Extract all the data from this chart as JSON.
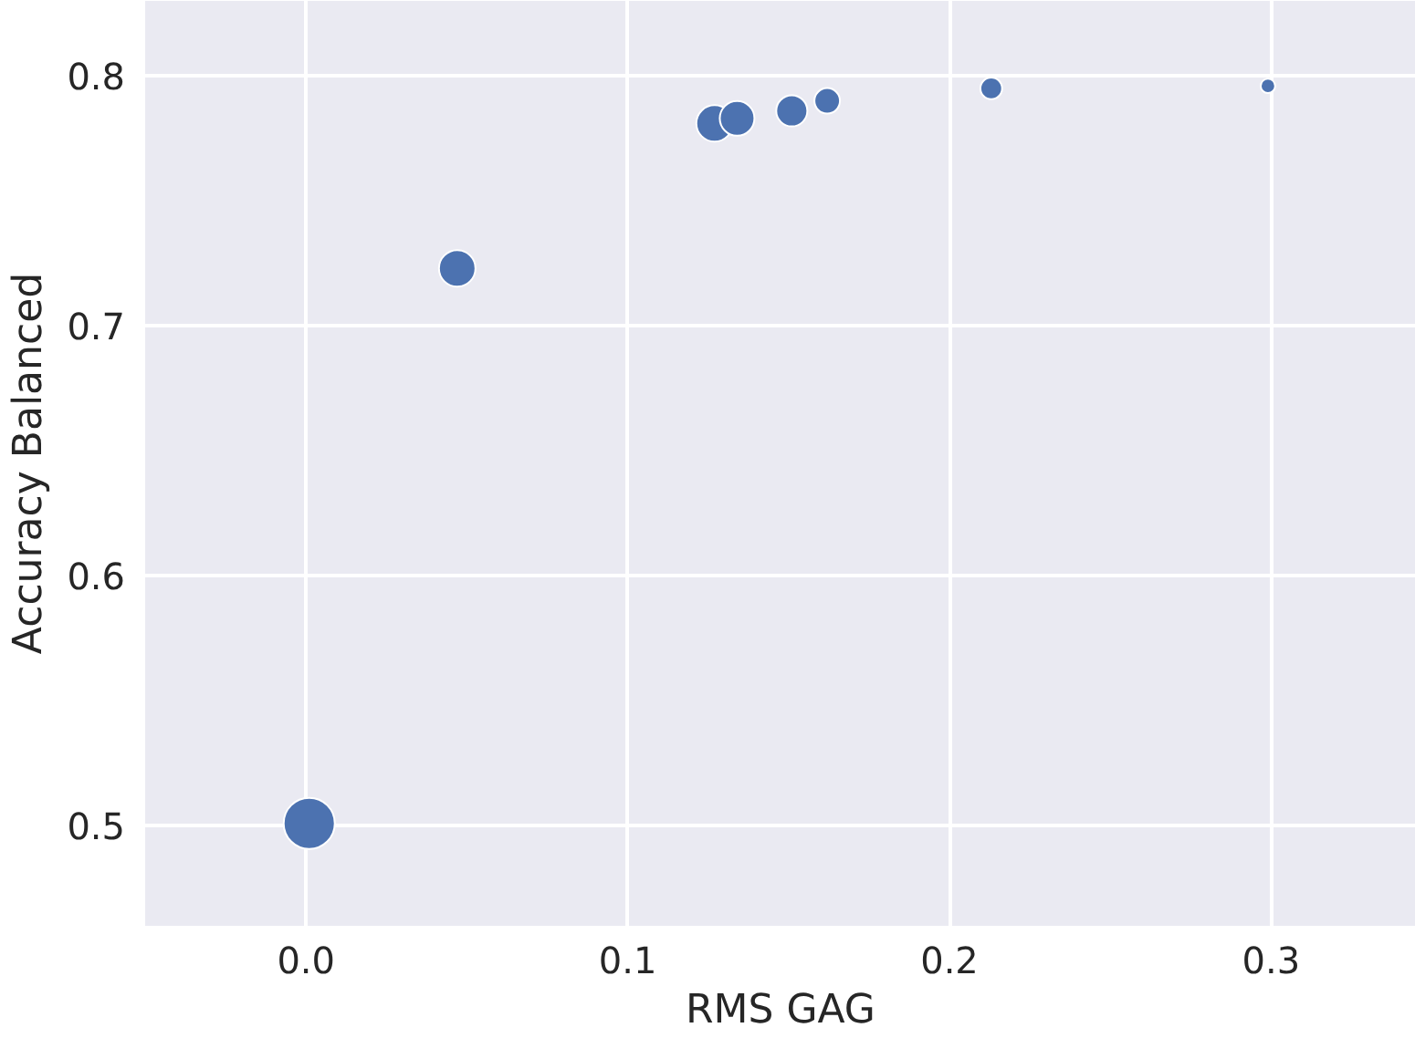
{
  "chart_data": {
    "type": "bubble",
    "xlabel": "RMS GAG",
    "ylabel": "Accuracy Balanced",
    "x": [
      0.001,
      0.047,
      0.127,
      0.134,
      0.151,
      0.162,
      0.213,
      0.299
    ],
    "values": [
      0.501,
      0.723,
      0.781,
      0.783,
      0.786,
      0.79,
      0.795,
      0.796
    ],
    "sizes": [
      1,
      0.51,
      0.51,
      0.46,
      0.37,
      0.25,
      0.18,
      0.08
    ],
    "color": "#4c72b0",
    "xlim": [
      -0.05,
      0.345
    ],
    "ylim": [
      0.46,
      0.83
    ],
    "xticks": [
      {
        "value": 0,
        "label": "0.0"
      },
      0.1,
      0.2,
      0.3
    ],
    "yticks": [
      0.5,
      0.6,
      0.7,
      0.8
    ],
    "grid": true,
    "marker": "circle"
  }
}
